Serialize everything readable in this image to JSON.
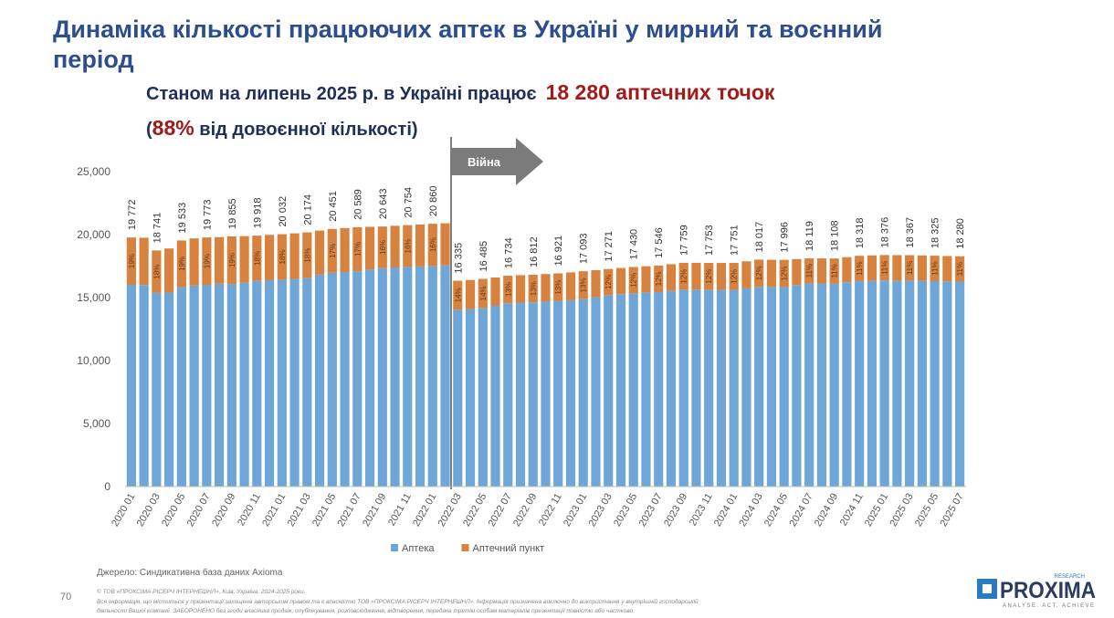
{
  "slide": {
    "title": "Динаміка кількості працюючих аптек в Україні у мирний та воєнний період",
    "subtitle_lead": "Станом на липень 2025 р. в Україні працює",
    "subtitle_highlight": "18 280 аптечних точок",
    "note_open": "(",
    "note_highlight": "88%",
    "note_rest": " від довоєнної кількості)",
    "war_label": "Війна",
    "source": "Джерело: Синдикативна база даних Axioma",
    "page_number": "70",
    "copyright": "© ТОВ «ПРОКСІМА РІСЕРЧ ІНТЕРНЕШНЛ», Київ, Україна, 2024-2025 роки.",
    "disclaimer_1": "Вся інформація, що міститься у презентації захищена авторським правом та є власністю ТОВ «ПРОКСІМА РІСЕРЧ ІНТЕРНЕШНЛ». Інформація призначена виключно до використання у внутрішній господарській",
    "disclaimer_2": "діяльності Вашої компанії. ЗАБОРОНЕНО без згоди власника продаж, опублікування, розповсюдження, відтворення, передача третім особам матеріалів презентації повністю або частково.",
    "logo_name": "PROXIMA",
    "logo_top": "RESEARCH",
    "logo_tagline": "ANALYSE. ACT. ACHIEVE"
  },
  "chart_data": {
    "type": "stacked-bar",
    "categories": [
      "2020 01",
      null,
      "2020 03",
      null,
      "2020 05",
      null,
      "2020 07",
      null,
      "2020 09",
      null,
      "2020 11",
      null,
      "2021 01",
      null,
      "2021 03",
      null,
      "2021 05",
      null,
      "2021 07",
      null,
      "2021 09",
      null,
      "2021 11",
      null,
      "2022 01",
      null,
      "2022 03",
      null,
      "2022 05",
      null,
      "2022 07",
      null,
      "2022 09",
      null,
      "2022 11",
      null,
      "2023 01",
      null,
      "2023 03",
      null,
      "2023 05",
      null,
      "2023 07",
      null,
      "2023 09",
      null,
      "2023 11",
      null,
      "2024 01",
      null,
      "2024 03",
      null,
      "2024 05",
      null,
      "2024 07",
      null,
      "2024 09",
      null,
      "2024 11",
      null,
      "2025 01",
      null,
      "2025 03",
      null,
      "2025 05",
      null,
      "2025 07"
    ],
    "series": [
      {
        "name": "Аптека",
        "color": "#6fa6d8",
        "values": [
          16012,
          16000,
          15371,
          15400,
          15823,
          15960,
          16013,
          16100,
          16085,
          16180,
          16328,
          16380,
          16422,
          16480,
          16544,
          16820,
          16971,
          17030,
          17089,
          17220,
          17343,
          17390,
          17434,
          17470,
          17520,
          17560,
          14045,
          14100,
          14175,
          14350,
          14554,
          14600,
          14622,
          14680,
          14721,
          14790,
          14873,
          15030,
          15201,
          15270,
          15340,
          15390,
          15436,
          15530,
          15629,
          15630,
          15623,
          15620,
          15621,
          15730,
          15857,
          15840,
          15836,
          16000,
          16129,
          16120,
          16118,
          16210,
          16308,
          16330,
          16356,
          16350,
          16347,
          16330,
          16305,
          16290,
          16270
        ]
      },
      {
        "name": "Аптечний пункт",
        "color": "#d7823f",
        "values": [
          3760,
          3750,
          3370,
          3500,
          3710,
          3740,
          3760,
          3700,
          3770,
          3700,
          3590,
          3600,
          3610,
          3620,
          3630,
          3500,
          3480,
          3490,
          3500,
          3400,
          3300,
          3310,
          3320,
          3330,
          3340,
          3340,
          2290,
          2300,
          2310,
          2250,
          2180,
          2180,
          2190,
          2190,
          2200,
          2210,
          2220,
          2150,
          2070,
          2080,
          2090,
          2100,
          2110,
          2120,
          2130,
          2130,
          2130,
          2130,
          2130,
          2150,
          2160,
          2160,
          2160,
          2060,
          1990,
          1990,
          1990,
          2000,
          2010,
          2020,
          2020,
          2020,
          2020,
          2020,
          2020,
          2010,
          2010
        ]
      }
    ],
    "totals": [
      19772,
      null,
      18741,
      null,
      19533,
      null,
      19773,
      null,
      19855,
      null,
      19918,
      null,
      20032,
      null,
      20174,
      null,
      20451,
      null,
      20589,
      null,
      20643,
      null,
      20754,
      null,
      20860,
      null,
      16335,
      null,
      16485,
      null,
      16734,
      null,
      16812,
      null,
      16921,
      null,
      17093,
      null,
      17271,
      null,
      17430,
      null,
      17546,
      null,
      17759,
      null,
      17753,
      null,
      17751,
      null,
      18017,
      null,
      17996,
      null,
      18119,
      null,
      18108,
      null,
      18318,
      null,
      18376,
      null,
      18367,
      null,
      18325,
      null,
      18280
    ],
    "total_labels": [
      "19 772",
      null,
      "18 741",
      null,
      "19 533",
      null,
      "19 773",
      null,
      "19 855",
      null,
      "19 918",
      null,
      "20 032",
      null,
      "20 174",
      null,
      "20 451",
      null,
      "20 589",
      null,
      "20 643",
      null,
      "20 754",
      null,
      "20 860",
      null,
      "16 335",
      null,
      "16 485",
      null,
      "16 734",
      null,
      "16 812",
      null,
      "16 921",
      null,
      "17 093",
      null,
      "17 271",
      null,
      "17 430",
      null,
      "17 546",
      null,
      "17 759",
      null,
      "17 753",
      null,
      "17 751",
      null,
      "18 017",
      null,
      "17 996",
      null,
      "18 119",
      null,
      "18 108",
      null,
      "18 318",
      null,
      "18 376",
      null,
      "18 367",
      null,
      "18 325",
      null,
      "18 280"
    ],
    "share_labels": [
      "19%",
      null,
      "18%",
      null,
      "19%",
      null,
      "19%",
      null,
      "19%",
      null,
      "18%",
      null,
      "18%",
      null,
      "18%",
      null,
      "17%",
      null,
      "17%",
      null,
      "16%",
      null,
      "16%",
      null,
      "16%",
      null,
      "14%",
      null,
      "14%",
      null,
      "13%",
      null,
      "13%",
      null,
      "13%",
      null,
      "13%",
      null,
      "12%",
      null,
      "12%",
      null,
      "12%",
      null,
      "12%",
      null,
      "12%",
      null,
      "12%",
      null,
      "12%",
      null,
      "12%",
      null,
      "11%",
      null,
      "11%",
      null,
      "11%",
      null,
      "11%",
      null,
      "11%",
      null,
      "11%",
      null,
      "11%"
    ],
    "ylim": [
      0,
      25000
    ],
    "yticks": [
      0,
      {
        "value": 5000,
        "label": "5,000"
      },
      {
        "value": 10000,
        "label": "10,000"
      },
      {
        "value": 15000,
        "label": "15,000"
      },
      {
        "value": 20000,
        "label": "20,000"
      },
      {
        "value": 25000,
        "label": "25,000"
      }
    ],
    "grid": false,
    "legend": "bottom"
  }
}
